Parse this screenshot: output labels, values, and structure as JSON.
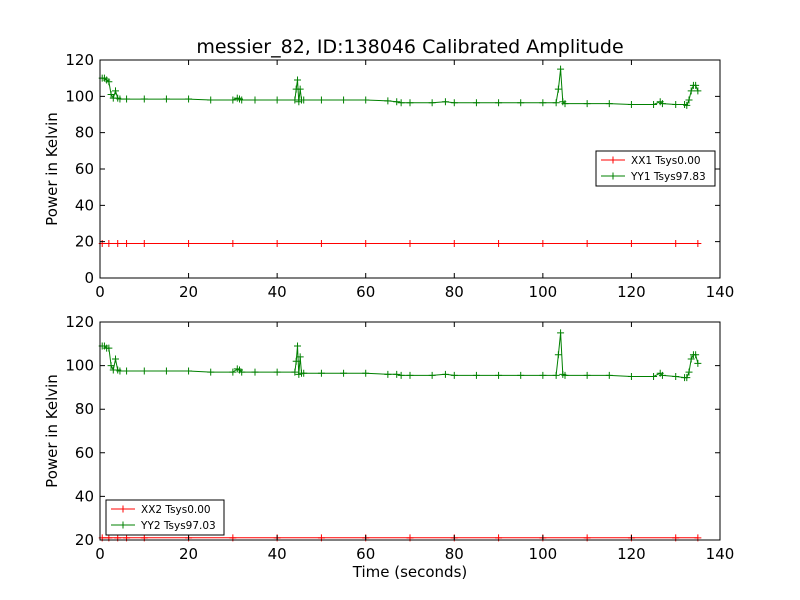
{
  "title": "messier_82, ID:138046 Calibrated Amplitude",
  "colors": {
    "xx": "#ff0000",
    "yy": "#008000",
    "axes": "#000000",
    "background": "#ffffff"
  },
  "chart_data": [
    {
      "type": "line",
      "title": "messier_82, ID:138046 Calibrated Amplitude",
      "xlabel": "",
      "ylabel": "Power in Kelvin",
      "xlim": [
        0,
        140
      ],
      "ylim": [
        0,
        120
      ],
      "xticks": [
        0,
        20,
        40,
        60,
        80,
        100,
        120,
        140
      ],
      "yticks": [
        0,
        20,
        40,
        60,
        80,
        100,
        120
      ],
      "grid": false,
      "legend": "center-right",
      "series": [
        {
          "name": "XX1 Tsys0.00",
          "color": "#ff0000",
          "marker": "+",
          "x": [
            0.5,
            2,
            4,
            6,
            10,
            20,
            30,
            40,
            50,
            60,
            70,
            80,
            90,
            100,
            110,
            120,
            130,
            135
          ],
          "y": [
            19,
            19,
            19,
            19,
            19,
            19,
            19,
            19,
            19,
            19,
            19,
            19,
            19,
            19,
            19,
            19,
            19,
            19
          ]
        },
        {
          "name": "YY1 Tsys97.83",
          "color": "#008000",
          "marker": "+",
          "x": [
            0.5,
            1,
            1.5,
            2,
            2.5,
            3,
            3.5,
            4,
            4.5,
            6,
            10,
            15,
            20,
            25,
            30,
            31,
            31.5,
            32,
            35,
            40,
            44,
            44.3,
            44.6,
            44.9,
            45.2,
            45.5,
            46,
            50,
            55,
            60,
            65,
            67,
            68,
            70,
            75,
            78,
            80,
            85,
            90,
            95,
            100,
            103,
            103.5,
            104,
            104.5,
            105,
            110,
            115,
            120,
            125,
            126.5,
            127,
            130,
            132,
            132.5,
            133,
            133.5,
            134,
            134.5,
            135
          ],
          "y": [
            110,
            110,
            109,
            108,
            101,
            99,
            103,
            99,
            98.5,
            98.5,
            98.5,
            98.5,
            98.5,
            98,
            98,
            99,
            98.5,
            98,
            98,
            98,
            98,
            104,
            109,
            97,
            104,
            98,
            98,
            98,
            98,
            98,
            97.5,
            97,
            96.5,
            96.5,
            96.5,
            97,
            96.5,
            96.5,
            96.5,
            96.5,
            96.5,
            96.5,
            104,
            115,
            97,
            96,
            96,
            96,
            95.5,
            95.5,
            97,
            96,
            95.5,
            95.5,
            95,
            98,
            103,
            106,
            106,
            103
          ]
        }
      ]
    },
    {
      "type": "line",
      "title": "",
      "xlabel": "Time (seconds)",
      "ylabel": "Power in Kelvin",
      "xlim": [
        0,
        140
      ],
      "ylim": [
        20,
        120
      ],
      "xticks": [
        0,
        20,
        40,
        60,
        80,
        100,
        120,
        140
      ],
      "yticks": [
        20,
        40,
        60,
        80,
        100,
        120
      ],
      "grid": false,
      "legend": "bottom-left",
      "series": [
        {
          "name": "XX2 Tsys0.00",
          "color": "#ff0000",
          "marker": "+",
          "x": [
            0.5,
            2,
            4,
            6,
            10,
            20,
            30,
            40,
            50,
            60,
            70,
            80,
            90,
            100,
            110,
            120,
            130,
            135
          ],
          "y": [
            21,
            21,
            21,
            21,
            21,
            21,
            21,
            21,
            21,
            21,
            21,
            21,
            21,
            21,
            21,
            21,
            21,
            21
          ]
        },
        {
          "name": "YY2 Tsys97.03",
          "color": "#008000",
          "marker": "+",
          "x": [
            0.5,
            1,
            1.5,
            2,
            2.5,
            3,
            3.5,
            4,
            4.5,
            6,
            10,
            15,
            20,
            25,
            30,
            31,
            31.5,
            32,
            35,
            40,
            44,
            44.3,
            44.6,
            44.9,
            45.2,
            45.5,
            46,
            50,
            55,
            60,
            65,
            67,
            68,
            70,
            75,
            78,
            80,
            85,
            90,
            95,
            100,
            103,
            103.5,
            104,
            104.5,
            105,
            110,
            115,
            120,
            125,
            126.5,
            127,
            130,
            132,
            132.5,
            133,
            133.5,
            134,
            134.5,
            135
          ],
          "y": [
            109,
            109,
            108,
            108,
            100,
            98,
            103,
            98,
            97.5,
            97.5,
            97.5,
            97.5,
            97.5,
            97,
            97,
            98.5,
            98,
            97,
            97,
            97,
            97,
            102,
            109,
            96,
            104,
            96.5,
            96.5,
            96.5,
            96.5,
            96.5,
            96,
            96,
            95.5,
            95.5,
            95.5,
            96,
            95.5,
            95.5,
            95.5,
            95.5,
            95.5,
            95.5,
            105,
            115,
            96,
            95.5,
            95.5,
            95.5,
            95,
            95,
            96.5,
            95.5,
            95,
            94.5,
            94.5,
            97,
            103,
            105,
            105,
            101
          ]
        }
      ]
    }
  ]
}
